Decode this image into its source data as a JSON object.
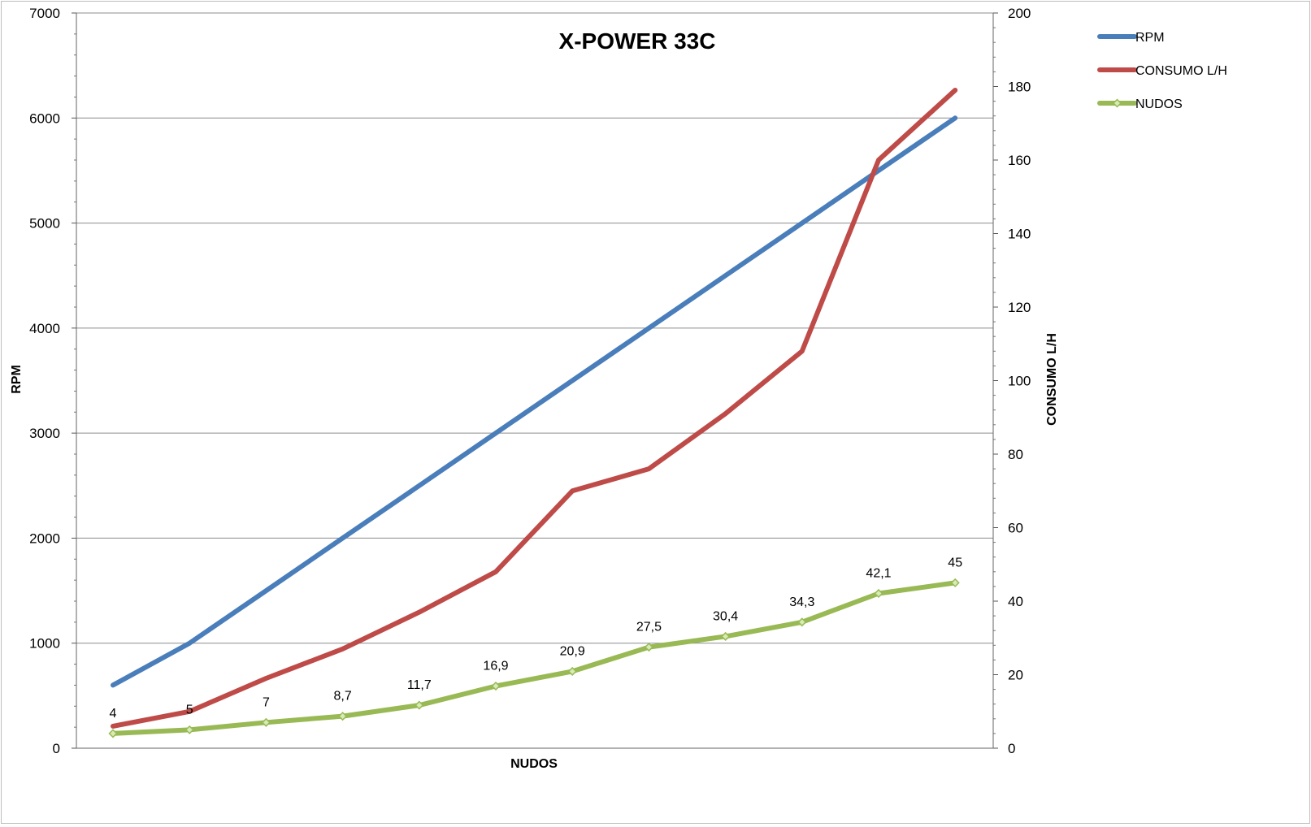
{
  "chart_data": {
    "type": "line",
    "title": "X-POWER 33C",
    "xlabel": "NUDOS",
    "ylabel": "RPM",
    "y2label": "CONSUMO L/H",
    "ylim": [
      0,
      7000
    ],
    "y2lim": [
      0,
      200
    ],
    "yticks": [
      "0",
      "1000",
      "2000",
      "3000",
      "4000",
      "5000",
      "6000",
      "7000"
    ],
    "y2ticks": [
      "0",
      "20",
      "40",
      "60",
      "80",
      "100",
      "120",
      "140",
      "160",
      "180",
      "200"
    ],
    "grid": true,
    "legend_position": "top-right",
    "series": [
      {
        "name": "RPM",
        "axis": "left",
        "color": "#4a7ebb",
        "values": [
          600,
          1000,
          1500,
          2000,
          2500,
          3000,
          3500,
          4000,
          4500,
          5000,
          5500,
          6000
        ]
      },
      {
        "name": "CONSUMO L/H",
        "axis": "right",
        "color": "#be4b48",
        "values": [
          6,
          10,
          19,
          27,
          37,
          48,
          70,
          76,
          91,
          108,
          160,
          179
        ]
      },
      {
        "name": "NUDOS",
        "axis": "right",
        "color": "#98b954",
        "marker": "diamond",
        "values": [
          4,
          5,
          7,
          8.7,
          11.7,
          16.9,
          20.9,
          27.5,
          30.4,
          34.3,
          42.1,
          45
        ],
        "labels": [
          "4",
          "5",
          "7",
          "8,7",
          "11,7",
          "16,9",
          "20,9",
          "27,5",
          "30,4",
          "34,3",
          "42,1",
          "45"
        ]
      }
    ]
  }
}
